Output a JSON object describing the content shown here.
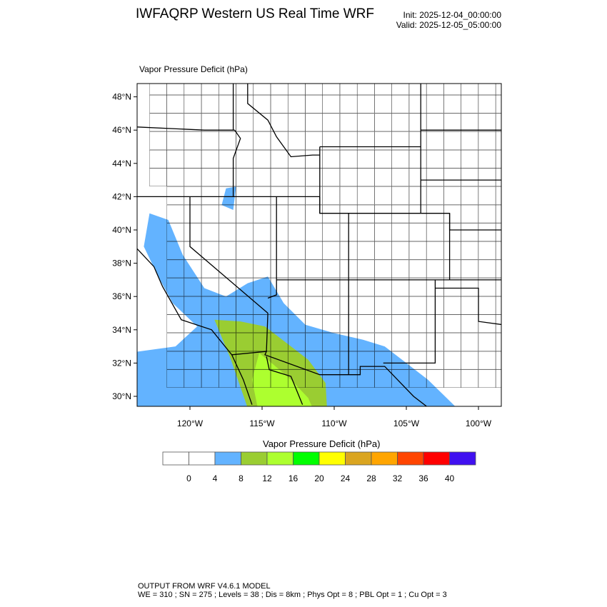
{
  "header": {
    "title": "IWFAQRP Western US Real Time WRF",
    "init": "Init: 2025-12-04_00:00:00",
    "valid": "Valid: 2025-12-05_05:00:00",
    "subtitle": "Vapor Pressure Deficit   (hPa)"
  },
  "map": {
    "projection": "lambert-conformal",
    "lat_labels": [
      "48°N",
      "46°N",
      "44°N",
      "42°N",
      "40°N",
      "38°N",
      "36°N",
      "34°N",
      "32°N",
      "30°N"
    ],
    "lat_values": [
      48,
      46,
      44,
      42,
      40,
      38,
      36,
      34,
      32,
      30
    ],
    "lon_labels": [
      "120°W",
      "115°W",
      "110°W",
      "105°W",
      "100°W"
    ],
    "lon_values": [
      -120,
      -115,
      -110,
      -105,
      -100
    ],
    "field": "Vapor Pressure Deficit",
    "units": "hPa"
  },
  "colorbar": {
    "title": "Vapor Pressure Deficit  (hPa)",
    "labels": [
      "0",
      "4",
      "8",
      "12",
      "16",
      "20",
      "24",
      "28",
      "32",
      "36",
      "40"
    ],
    "colors": [
      "#ffffff",
      "#ffffff",
      "#63b3ff",
      "#9acd32",
      "#adff2f",
      "#00ff00",
      "#ffff00",
      "#daa520",
      "#ffa500",
      "#ff4500",
      "#ff0000",
      "#4010f0"
    ]
  },
  "footer": {
    "line1": "OUTPUT FROM WRF V4.6.1 MODEL",
    "line2": "WE = 310 ; SN = 275 ; Levels = 38 ; Dis = 8km ; Phys Opt = 8 ; PBL Opt = 1 ; Cu Opt = 3"
  }
}
